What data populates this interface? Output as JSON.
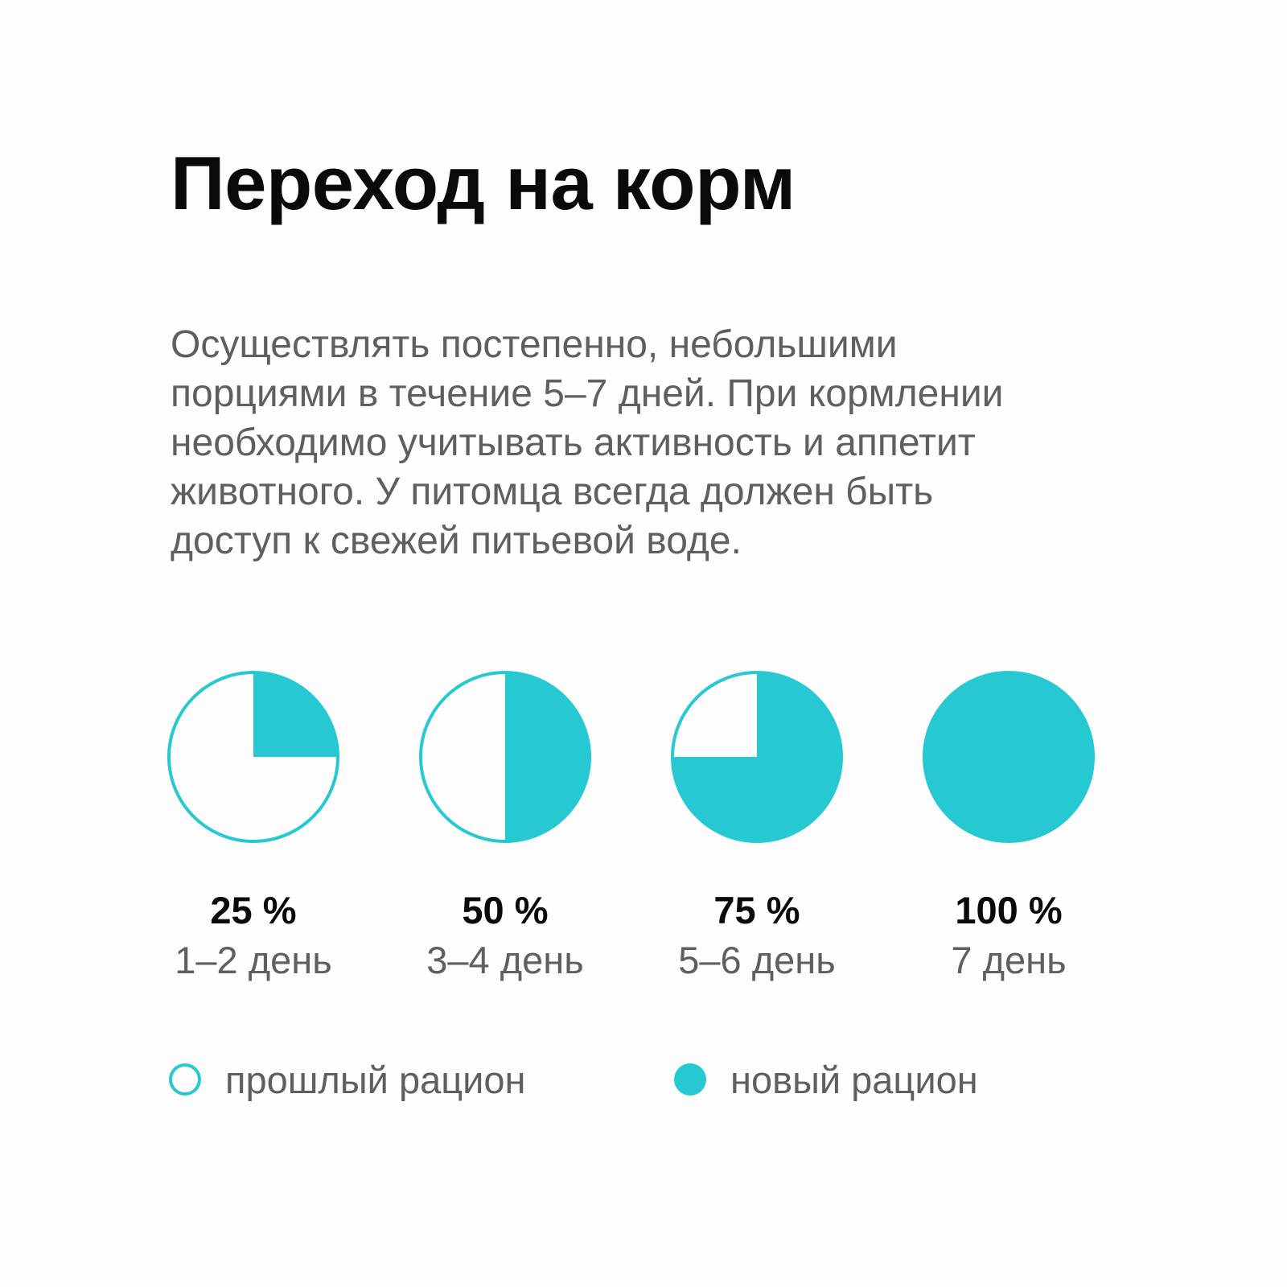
{
  "title": "Переход на корм",
  "description_lines": [
    "Осуществлять постепенно, небольшими",
    "порциями в течение 5–7 дней. При кормлении",
    "необходимо учитывать активность и аппетит",
    "животного. У питомца всегда должен быть",
    "доступ к свежей питьевой воде."
  ],
  "colors": {
    "accent": "#26c8d2",
    "background": "#fdfdfd",
    "title": "#0a0a0a",
    "text": "#5f5f5f"
  },
  "chart_data": {
    "type": "pie",
    "grid": false,
    "legend_position": "bottom",
    "series": [
      {
        "name": "прошлый рацион",
        "style": "outline"
      },
      {
        "name": "новый рацион",
        "style": "filled"
      }
    ],
    "items": [
      {
        "percent_label": "25 %",
        "day_label": "1–2 день",
        "new_share": 25,
        "old_share": 75
      },
      {
        "percent_label": "50 %",
        "day_label": "3–4 день",
        "new_share": 50,
        "old_share": 50
      },
      {
        "percent_label": "75 %",
        "day_label": "5–6 день",
        "new_share": 75,
        "old_share": 25
      },
      {
        "percent_label": "100 %",
        "day_label": "7 день",
        "new_share": 100,
        "old_share": 0
      }
    ]
  }
}
